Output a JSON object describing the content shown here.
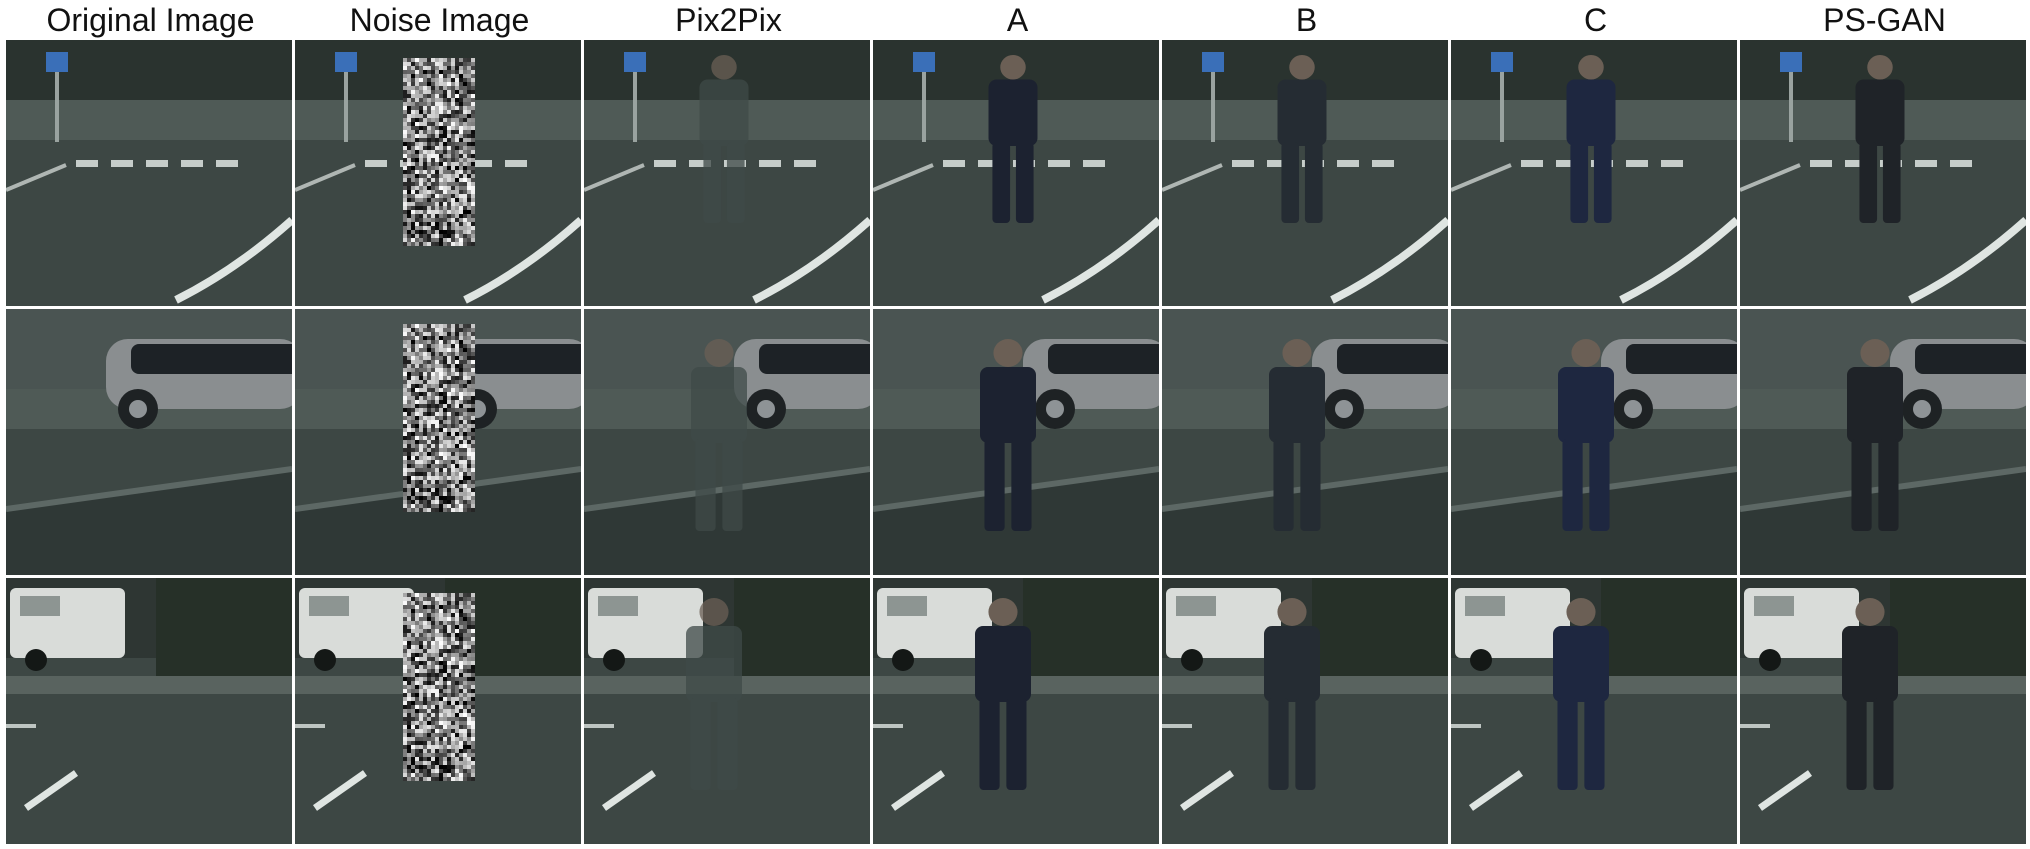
{
  "columns": [
    {
      "title": "Original Image",
      "kind": "original"
    },
    {
      "title": "Noise Image",
      "kind": "noise"
    },
    {
      "title": "Pix2Pix",
      "kind": "pix2pix"
    },
    {
      "title": "A",
      "kind": "a"
    },
    {
      "title": "B",
      "kind": "b"
    },
    {
      "title": "C",
      "kind": "c"
    },
    {
      "title": "PS-GAN",
      "kind": "psgan"
    }
  ],
  "rows": [
    {
      "scene": "crosswalk-curve"
    },
    {
      "scene": "silver-car"
    },
    {
      "scene": "white-van"
    }
  ],
  "colors": {
    "road": "#3d4744",
    "sidewalk": "#4f5a56",
    "building": "#2e3633",
    "lane_marking": "#dfe5e2",
    "figure_dark": "#1c2330",
    "separator": "#ffffff"
  }
}
